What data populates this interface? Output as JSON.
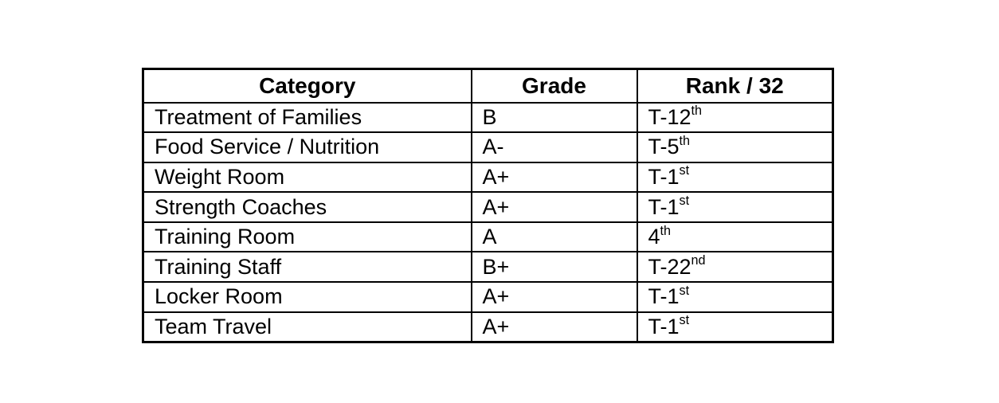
{
  "colors": {
    "border": "#000000",
    "background": "#ffffff",
    "text": "#000000"
  },
  "table": {
    "columns": {
      "category": "Category",
      "grade": "Grade",
      "rank": "Rank / 32"
    },
    "rows": [
      {
        "category": "Treatment of Families",
        "grade": "B",
        "rank_base": "T-12",
        "rank_sup": "th"
      },
      {
        "category": "Food Service / Nutrition",
        "grade": "A-",
        "rank_base": "T-5",
        "rank_sup": "th"
      },
      {
        "category": "Weight Room",
        "grade": "A+",
        "rank_base": "T-1",
        "rank_sup": "st"
      },
      {
        "category": "Strength Coaches",
        "grade": "A+",
        "rank_base": "T-1",
        "rank_sup": "st"
      },
      {
        "category": "Training Room",
        "grade": "A",
        "rank_base": "4",
        "rank_sup": "th"
      },
      {
        "category": "Training Staff",
        "grade": "B+",
        "rank_base": "T-22",
        "rank_sup": "nd"
      },
      {
        "category": "Locker Room",
        "grade": "A+",
        "rank_base": "T-1",
        "rank_sup": "st"
      },
      {
        "category": "Team Travel",
        "grade": "A+",
        "rank_base": "T-1",
        "rank_sup": "st"
      }
    ]
  }
}
